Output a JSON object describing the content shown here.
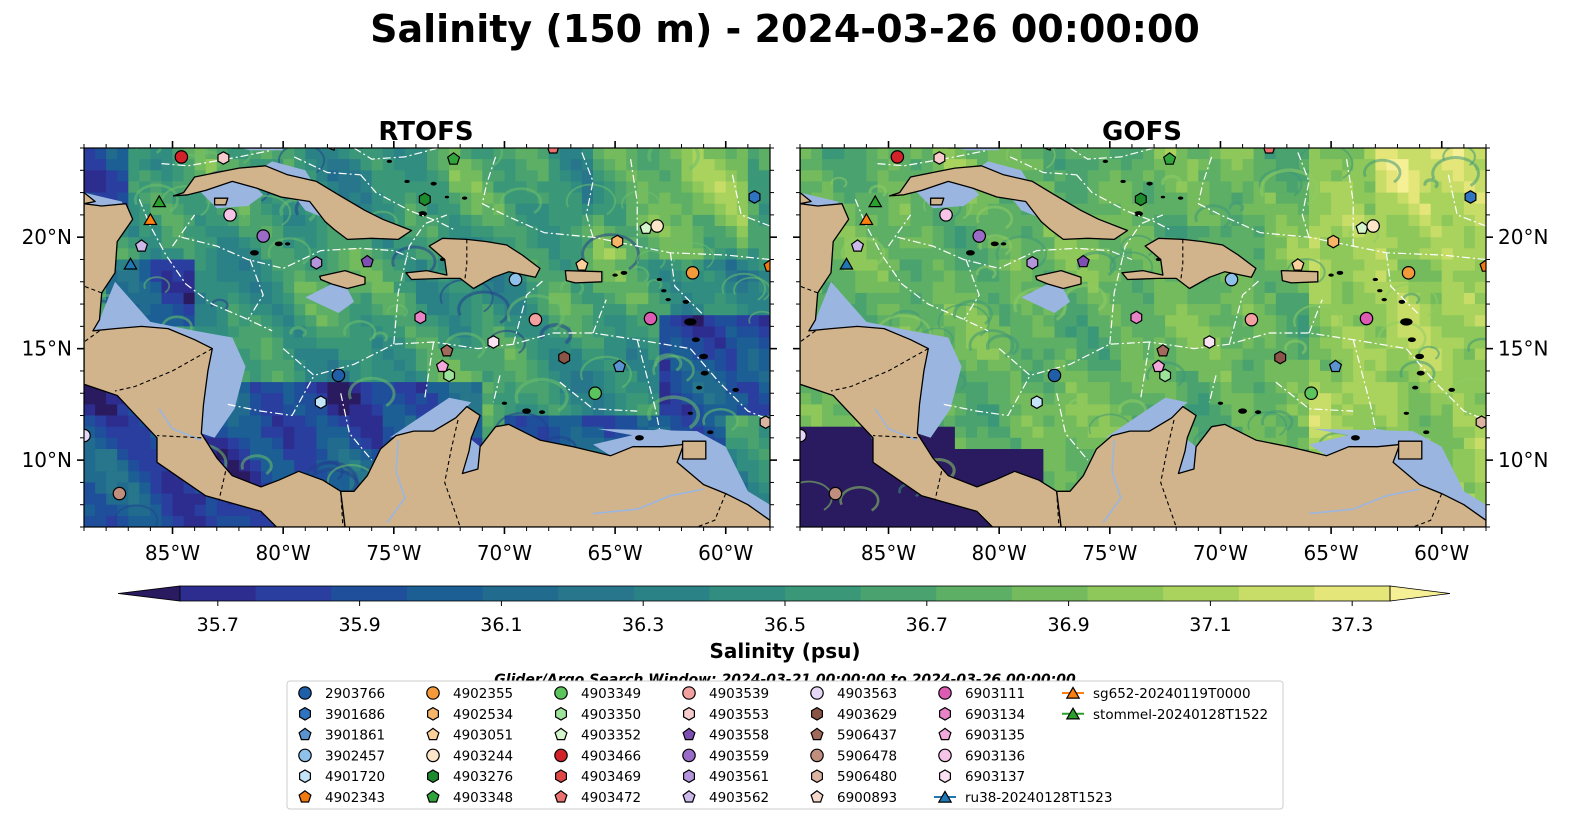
{
  "title": "Salinity (150 m) - 2024-03-26 00:00:00",
  "panels": [
    {
      "name": "RTOFS",
      "variant": "rtofs"
    },
    {
      "name": "GOFS",
      "variant": "gofs"
    }
  ],
  "axes": {
    "lon_ticks": [
      "85°W",
      "80°W",
      "75°W",
      "70°W",
      "65°W",
      "60°W"
    ],
    "lat_ticks": [
      "20°N",
      "15°N",
      "10°N"
    ],
    "lon_range": [
      -89,
      -58
    ],
    "lat_range": [
      7,
      24
    ]
  },
  "colorbar": {
    "label": "Salinity (psu)",
    "tick_labels": [
      "35.7",
      "35.9",
      "36.1",
      "36.3",
      "36.5",
      "36.7",
      "36.9",
      "37.1",
      "37.3"
    ],
    "range": [
      35.7,
      37.3
    ],
    "colors": [
      "#2a1b60",
      "#2d2d8f",
      "#2a3ea0",
      "#1f4f9a",
      "#1c5f94",
      "#216b8f",
      "#27768b",
      "#2b8286",
      "#318d80",
      "#3a9878",
      "#4aa36f",
      "#5daf66",
      "#74bb5d",
      "#8ec75a",
      "#aad35e",
      "#c8dd68",
      "#e4e67a",
      "#f5ef96"
    ]
  },
  "search_window": "Glider/Argo Search Window: 2024-03-21 00:00:00 to 2024-03-26 00:00:00",
  "colors": {
    "land": "#d2b48c",
    "shallow": "#9ab6e0",
    "coastline": "#000000"
  },
  "legend": [
    {
      "label": "2903766",
      "marker": "circle",
      "color": "#1f5fa8"
    },
    {
      "label": "3901686",
      "marker": "hexagon",
      "color": "#2f74c0"
    },
    {
      "label": "3901861",
      "marker": "pentagon",
      "color": "#5a93cf"
    },
    {
      "label": "3902457",
      "marker": "circle",
      "color": "#8ec2ea"
    },
    {
      "label": "4901720",
      "marker": "hexagon",
      "color": "#c4e4f8"
    },
    {
      "label": "4902343",
      "marker": "pentagon",
      "color": "#f07a10"
    },
    {
      "label": "4902355",
      "marker": "circle",
      "color": "#f59a3a"
    },
    {
      "label": "4902534",
      "marker": "hexagon",
      "color": "#f7b56a"
    },
    {
      "label": "4903051",
      "marker": "pentagon",
      "color": "#fbd09a"
    },
    {
      "label": "4903244",
      "marker": "circle",
      "color": "#fde6c8"
    },
    {
      "label": "4903276",
      "marker": "hexagon",
      "color": "#1e8a2e"
    },
    {
      "label": "4903348",
      "marker": "pentagon",
      "color": "#32a43c"
    },
    {
      "label": "4903349",
      "marker": "circle",
      "color": "#5cc45c"
    },
    {
      "label": "4903350",
      "marker": "hexagon",
      "color": "#9ee39a"
    },
    {
      "label": "4903352",
      "marker": "pentagon",
      "color": "#d4f5cc"
    },
    {
      "label": "4903466",
      "marker": "circle",
      "color": "#d2222a"
    },
    {
      "label": "4903469",
      "marker": "hexagon",
      "color": "#e04848"
    },
    {
      "label": "4903472",
      "marker": "pentagon",
      "color": "#ec7272"
    },
    {
      "label": "4903539",
      "marker": "circle",
      "color": "#f2a0a0"
    },
    {
      "label": "4903553",
      "marker": "hexagon",
      "color": "#f8cccc"
    },
    {
      "label": "4903558",
      "marker": "pentagon",
      "color": "#7e4fb2"
    },
    {
      "label": "4903559",
      "marker": "circle",
      "color": "#9a6cc8"
    },
    {
      "label": "4903561",
      "marker": "hexagon",
      "color": "#b495dc"
    },
    {
      "label": "4903562",
      "marker": "pentagon",
      "color": "#cdb8ea"
    },
    {
      "label": "4903563",
      "marker": "circle",
      "color": "#e4d8f6"
    },
    {
      "label": "4903629",
      "marker": "hexagon",
      "color": "#8a5446"
    },
    {
      "label": "5906437",
      "marker": "pentagon",
      "color": "#a26a5a"
    },
    {
      "label": "5906478",
      "marker": "circle",
      "color": "#c08e7c"
    },
    {
      "label": "5906480",
      "marker": "hexagon",
      "color": "#dcb4a2"
    },
    {
      "label": "6900893",
      "marker": "pentagon",
      "color": "#f5d8cc"
    },
    {
      "label": "6903111",
      "marker": "circle",
      "color": "#dc5cb4"
    },
    {
      "label": "6903134",
      "marker": "hexagon",
      "color": "#e883c8"
    },
    {
      "label": "6903135",
      "marker": "pentagon",
      "color": "#f2a8da"
    },
    {
      "label": "6903136",
      "marker": "circle",
      "color": "#f6c4e6"
    },
    {
      "label": "6903137",
      "marker": "hexagon",
      "color": "#fbe2f2"
    },
    {
      "label": "ru38-20240128T1523",
      "marker": "triangle-line",
      "color": "#1f77b4"
    },
    {
      "label": "sg652-20240119T0000",
      "marker": "triangle-line",
      "color": "#ff7f0e"
    },
    {
      "label": "stommel-20240128T1522",
      "marker": "triangle-line",
      "color": "#2ca02c"
    }
  ],
  "observations": [
    {
      "id": "4903466",
      "lon": -84.6,
      "lat": 23.6
    },
    {
      "id": "4903553",
      "lon": -82.7,
      "lat": 23.55
    },
    {
      "id": "4903472",
      "lon": -67.8,
      "lat": 24.0
    },
    {
      "id": "4903348",
      "lon": -72.3,
      "lat": 23.5
    },
    {
      "id": "stommel-20240128T1522",
      "lon": -85.6,
      "lat": 21.6
    },
    {
      "id": "sg652-20240119T0000",
      "lon": -86.0,
      "lat": 20.8
    },
    {
      "id": "4903276",
      "lon": -73.6,
      "lat": 21.7
    },
    {
      "id": "6903136",
      "lon": -82.4,
      "lat": 21.0
    },
    {
      "id": "3901686",
      "lon": -58.7,
      "lat": 21.8
    },
    {
      "id": "4903352",
      "lon": -63.6,
      "lat": 20.4
    },
    {
      "id": "4903244",
      "lon": -63.1,
      "lat": 20.5
    },
    {
      "id": "4903559",
      "lon": -80.9,
      "lat": 20.05
    },
    {
      "id": "4902534",
      "lon": -64.9,
      "lat": 19.8
    },
    {
      "id": "4903562",
      "lon": -86.4,
      "lat": 19.6
    },
    {
      "id": "ru38-20240128T1523",
      "lon": -86.9,
      "lat": 18.8
    },
    {
      "id": "4903561",
      "lon": -78.5,
      "lat": 18.85
    },
    {
      "id": "4903558",
      "lon": -76.2,
      "lat": 18.9
    },
    {
      "id": "4903051",
      "lon": -66.5,
      "lat": 18.75
    },
    {
      "id": "4902355",
      "lon": -61.5,
      "lat": 18.4
    },
    {
      "id": "3902457",
      "lon": -69.5,
      "lat": 18.1
    },
    {
      "id": "4903539",
      "lon": -68.6,
      "lat": 16.3
    },
    {
      "id": "6903111",
      "lon": -63.4,
      "lat": 16.35
    },
    {
      "id": "6903134",
      "lon": -73.8,
      "lat": 16.4
    },
    {
      "id": "6903137",
      "lon": -70.5,
      "lat": 15.3
    },
    {
      "id": "5906437",
      "lon": -72.6,
      "lat": 14.9
    },
    {
      "id": "4903629",
      "lon": -67.3,
      "lat": 14.6
    },
    {
      "id": "6903135",
      "lon": -72.8,
      "lat": 14.2
    },
    {
      "id": "4903350",
      "lon": -72.5,
      "lat": 13.8
    },
    {
      "id": "3901861",
      "lon": -64.8,
      "lat": 14.2
    },
    {
      "id": "2903766",
      "lon": -77.5,
      "lat": 13.8
    },
    {
      "id": "4903349",
      "lon": -65.9,
      "lat": 13.0
    },
    {
      "id": "4901720",
      "lon": -78.3,
      "lat": 12.6
    },
    {
      "id": "4903563",
      "lon": -89.0,
      "lat": 11.1
    },
    {
      "id": "5906480",
      "lon": -58.2,
      "lat": 11.7
    },
    {
      "id": "5906478",
      "lon": -87.4,
      "lat": 8.5
    },
    {
      "id": "4902343",
      "lon": -58.0,
      "lat": 18.7
    }
  ]
}
